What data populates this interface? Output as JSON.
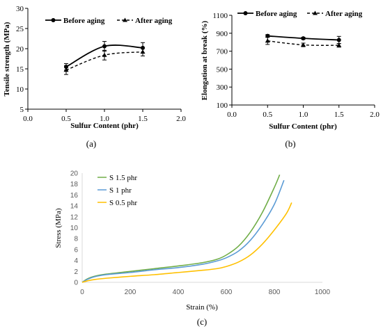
{
  "chart_data": [
    {
      "id": "a",
      "type": "line",
      "panel_label": "(a)",
      "xlabel": "Sulfur Content (phr)",
      "ylabel": "Tensile strength (MPa)",
      "xlim": [
        0,
        2
      ],
      "ylim": [
        5,
        30
      ],
      "xticks": [
        "0.0",
        "0.5",
        "1.0",
        "1.5",
        "2.0"
      ],
      "yticks": [
        "5",
        "10",
        "15",
        "20",
        "25",
        "30"
      ],
      "legend_position": "top",
      "grid": false,
      "x": [
        0.5,
        1.0,
        1.5
      ],
      "series": [
        {
          "name": "Before aging",
          "style": "solid",
          "marker": "circle",
          "values": [
            15.5,
            20.6,
            20.2
          ],
          "errors": [
            0.8,
            1.2,
            1.3
          ]
        },
        {
          "name": "After aging",
          "style": "dashed",
          "marker": "triangle",
          "values": [
            14.7,
            18.4,
            19.2
          ],
          "errors": [
            1.1,
            1.2,
            1.0
          ]
        }
      ]
    },
    {
      "id": "b",
      "type": "line",
      "panel_label": "(b)",
      "xlabel": "Sulfur Content (phr)",
      "ylabel": "Elongation at break (%)",
      "xlim": [
        0,
        2
      ],
      "ylim": [
        100,
        1100
      ],
      "xticks": [
        "0.0",
        "0.5",
        "1.0",
        "1.5",
        "2.0"
      ],
      "yticks": [
        "100",
        "300",
        "500",
        "700",
        "900",
        "1100"
      ],
      "legend_position": "top",
      "grid": false,
      "x": [
        0.5,
        1.0,
        1.5
      ],
      "series": [
        {
          "name": "Before aging",
          "style": "solid",
          "marker": "circle",
          "values": [
            870,
            843,
            825
          ],
          "errors": [
            15,
            12,
            40
          ]
        },
        {
          "name": "After aging",
          "style": "dashed",
          "marker": "triangle",
          "values": [
            815,
            770,
            765
          ],
          "errors": [
            40,
            20,
            20
          ]
        }
      ]
    },
    {
      "id": "c",
      "type": "line",
      "panel_label": "(c)",
      "xlabel": "Strain  (%)",
      "ylabel": "Stress  (MPa)",
      "xlim": [
        0,
        1000
      ],
      "ylim": [
        0,
        20
      ],
      "xticks": [
        "0",
        "200",
        "400",
        "600",
        "800",
        "1000"
      ],
      "yticks": [
        "0",
        "2",
        "4",
        "6",
        "8",
        "10",
        "12",
        "14",
        "16",
        "18",
        "20"
      ],
      "legend_position": "top-left",
      "grid": false,
      "series": [
        {
          "name": "S 1.5 phr",
          "color": "#70AD47",
          "points": [
            [
              0,
              0
            ],
            [
              20,
              0.6
            ],
            [
              50,
              1.1
            ],
            [
              100,
              1.5
            ],
            [
              200,
              2.0
            ],
            [
              300,
              2.5
            ],
            [
              400,
              3.0
            ],
            [
              500,
              3.6
            ],
            [
              560,
              4.2
            ],
            [
              600,
              5.0
            ],
            [
              650,
              6.6
            ],
            [
              700,
              9.2
            ],
            [
              750,
              12.8
            ],
            [
              800,
              17.4
            ],
            [
              822,
              19.7
            ]
          ]
        },
        {
          "name": "S 1 phr",
          "color": "#5B9BD5",
          "points": [
            [
              0,
              0
            ],
            [
              20,
              0.5
            ],
            [
              50,
              1.0
            ],
            [
              100,
              1.4
            ],
            [
              200,
              1.8
            ],
            [
              300,
              2.3
            ],
            [
              400,
              2.7
            ],
            [
              500,
              3.3
            ],
            [
              560,
              3.9
            ],
            [
              600,
              4.5
            ],
            [
              650,
              5.7
            ],
            [
              700,
              7.7
            ],
            [
              750,
              10.6
            ],
            [
              800,
              14.3
            ],
            [
              840,
              18.7
            ]
          ]
        },
        {
          "name": "S 0.5 phr",
          "color": "#FFC000",
          "points": [
            [
              0,
              0
            ],
            [
              20,
              0.25
            ],
            [
              50,
              0.5
            ],
            [
              100,
              0.75
            ],
            [
              200,
              1.1
            ],
            [
              300,
              1.4
            ],
            [
              400,
              1.8
            ],
            [
              500,
              2.2
            ],
            [
              560,
              2.5
            ],
            [
              600,
              2.9
            ],
            [
              650,
              3.7
            ],
            [
              700,
              5.0
            ],
            [
              750,
              7.0
            ],
            [
              800,
              9.6
            ],
            [
              850,
              12.6
            ],
            [
              872,
              14.6
            ]
          ]
        }
      ]
    }
  ]
}
